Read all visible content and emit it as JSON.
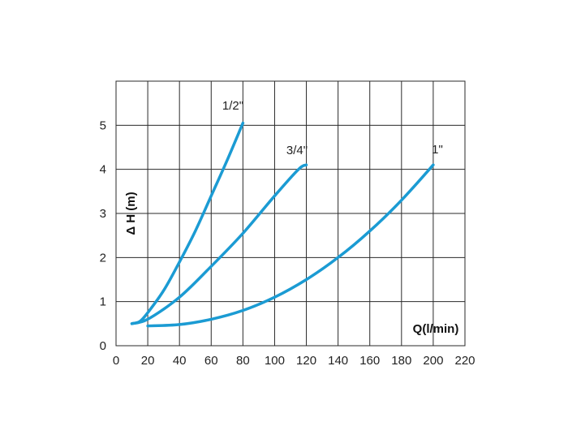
{
  "chart_data": {
    "type": "line",
    "title": "",
    "xlabel": "Q(l/min)",
    "ylabel": "Δ H (m)",
    "xlim": [
      0,
      220
    ],
    "ylim": [
      0,
      6
    ],
    "grid": true,
    "x_ticks": [
      "0",
      "20",
      "40",
      "60",
      "80",
      "100",
      "120",
      "140",
      "160",
      "180",
      "200",
      "220"
    ],
    "y_ticks": [
      "0",
      "1",
      "2",
      "3",
      "4",
      "5"
    ],
    "line_color": "#1b9bd3",
    "series": [
      {
        "name": "1/2\"",
        "x": [
          10,
          15,
          20,
          30,
          40,
          50,
          60,
          70,
          80
        ],
        "y": [
          0.5,
          0.55,
          0.75,
          1.25,
          1.9,
          2.6,
          3.4,
          4.2,
          5.05
        ]
      },
      {
        "name": "3/4\"",
        "x": [
          10,
          20,
          40,
          60,
          80,
          100,
          115,
          120
        ],
        "y": [
          0.5,
          0.6,
          1.1,
          1.8,
          2.55,
          3.4,
          4.0,
          4.1
        ]
      },
      {
        "name": "1\"",
        "x": [
          20,
          40,
          60,
          80,
          100,
          120,
          140,
          160,
          180,
          200
        ],
        "y": [
          0.45,
          0.48,
          0.6,
          0.8,
          1.1,
          1.5,
          2.0,
          2.6,
          3.3,
          4.1
        ]
      }
    ]
  }
}
